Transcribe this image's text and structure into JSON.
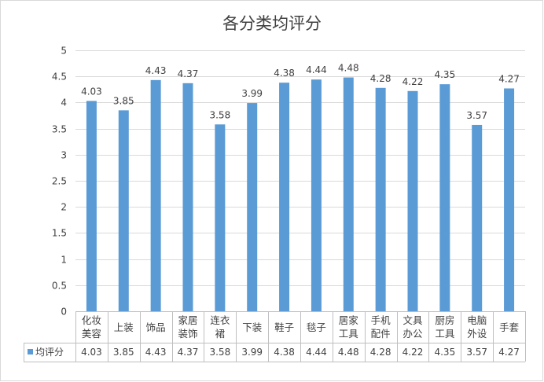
{
  "chart_data": {
    "type": "bar",
    "title": "各分类均评分",
    "categories": [
      [
        "化妆",
        "美容"
      ],
      [
        "上装"
      ],
      [
        "饰品"
      ],
      [
        "家居",
        "装饰"
      ],
      [
        "连衣",
        "裙"
      ],
      [
        "下装"
      ],
      [
        "鞋子"
      ],
      [
        "毯子"
      ],
      [
        "居家",
        "工具"
      ],
      [
        "手机",
        "配件"
      ],
      [
        "文具",
        "办公"
      ],
      [
        "厨房",
        "工具"
      ],
      [
        "电脑",
        "外设"
      ],
      [
        "手套"
      ]
    ],
    "series": [
      {
        "name": "均评分",
        "values": [
          4.03,
          3.85,
          4.43,
          4.37,
          3.58,
          3.99,
          4.38,
          4.44,
          4.48,
          4.28,
          4.22,
          4.35,
          3.57,
          4.27
        ],
        "color": "#5b9bd5"
      }
    ],
    "ylim": [
      0,
      5
    ],
    "yticks": [
      "0",
      "0.5",
      "1",
      "1.5",
      "2",
      "2.5",
      "3",
      "3.5",
      "4",
      "4.5",
      "5"
    ],
    "grid": true,
    "legend": "data-table",
    "data_table": true
  }
}
